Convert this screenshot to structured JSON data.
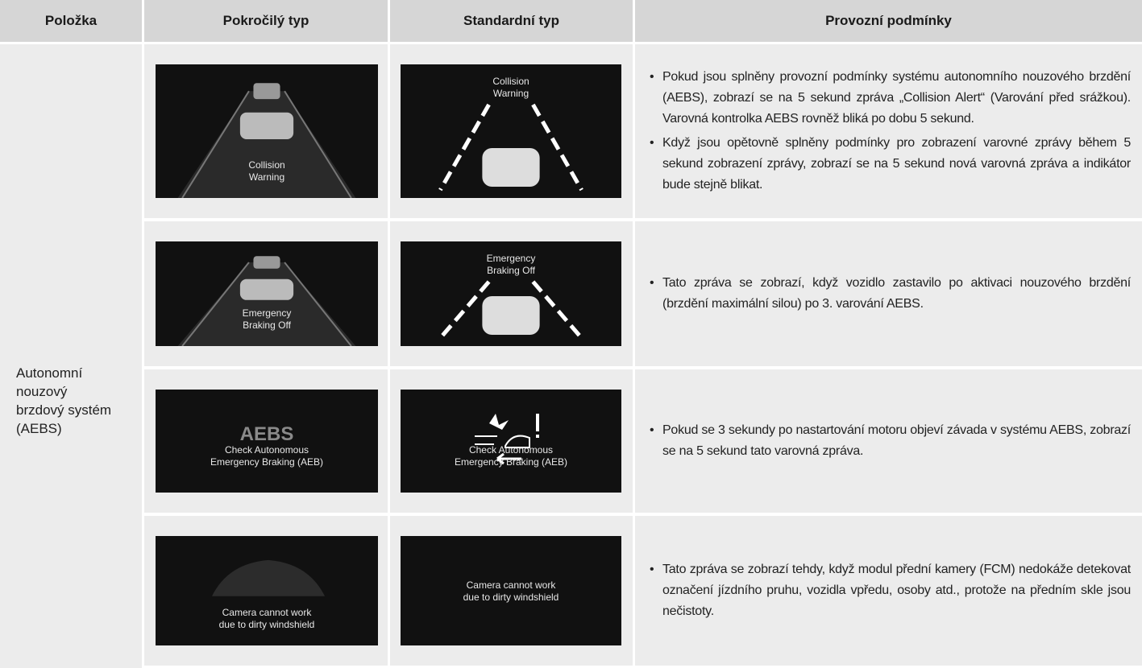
{
  "table": {
    "header": [
      "Položka",
      "Pokročilý typ",
      "Standardní typ",
      "Provozní podmínky"
    ],
    "item": "Autonomní\nnouzový\nbrzdový systém\n(AEBS)",
    "rows": [
      {
        "advanced": "Collision\nWarning",
        "standard": "Collision\nWarning",
        "conditions": [
          "Pokud jsou splněny provozní podmínky systému autonomního nouzového brzdění (AEBS), zobrazí se na 5 sekund zpráva „Collision Alert“ (Varování před srážkou). Varovná kontrolka AEBS rovněž bliká po dobu 5 sekund.",
          "Když jsou opětovně splněny podmínky pro zobrazení varovné zprávy během 5 sekund zobrazení zprávy, zobrazí se na 5 sekund nová varovná zpráva a indikátor bude stejně blikat."
        ]
      },
      {
        "advanced": "Emergency\nBraking Off",
        "standard": "Emergency\nBraking Off",
        "conditions": [
          "Tato zpráva se zobrazí, když vozidlo zastavilo po aktivaci nouzového brzdění (brzdění maximální silou) po 3. varování AEBS."
        ]
      },
      {
        "advanced_logo": "AEBS",
        "advanced": "Check Autonomous\nEmergency Braking (AEB)",
        "standard": "Check Autonomous\nEmergency Braking (AEB)",
        "conditions": [
          "Pokud se 3 sekundy po nastartování motoru objeví závada v systému AEBS, zobrazí se na 5 sekund tato varovná zpráva."
        ]
      },
      {
        "advanced": "Camera cannot work\ndue to dirty windshield",
        "standard": "Camera cannot work\ndue to dirty windshield",
        "conditions": [
          "Tato zpráva se zobrazí tehdy, když modul přední kamery (FCM) nedokáže detekovat označení jízdního pruhu, vozidla vpředu, osoby atd., protože na předním skle jsou nečistoty."
        ]
      }
    ]
  }
}
